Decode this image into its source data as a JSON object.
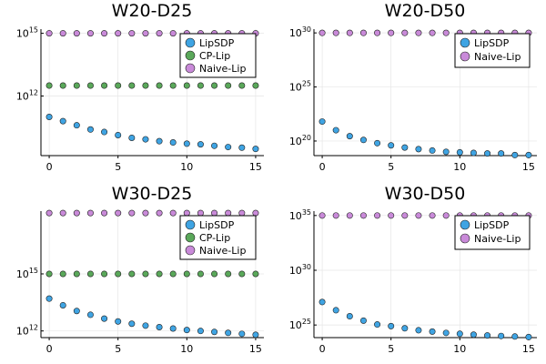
{
  "colors": {
    "LipSDP": "#3fa4e3",
    "CP-Lip": "#5aa85a",
    "Naive-Lip": "#c98ad9",
    "grid": "#e6e6e6",
    "axis": "#000000"
  },
  "chart_data": [
    {
      "type": "scatter",
      "title": "W20-D25",
      "xlabel": "",
      "ylabel": "",
      "xlim": [
        -0.6,
        15.6
      ],
      "x_ticks": [
        0,
        5,
        10,
        15
      ],
      "yscale": "log10",
      "ylim_log10": [
        9.15,
        15.2
      ],
      "y_ticks": [
        {
          "exp": 15,
          "base": "10",
          "sup": "15"
        },
        {
          "exp": 12,
          "base": "10",
          "sup": "12"
        }
      ],
      "legend": "top-right",
      "x": [
        0,
        1,
        2,
        3,
        4,
        5,
        6,
        7,
        8,
        9,
        10,
        11,
        12,
        13,
        14,
        15
      ],
      "series": [
        {
          "name": "LipSDP",
          "log10_values": [
            11.0,
            10.8,
            10.6,
            10.4,
            10.28,
            10.13,
            10.0,
            9.93,
            9.84,
            9.78,
            9.72,
            9.69,
            9.62,
            9.56,
            9.53,
            9.47
          ]
        },
        {
          "name": "CP-Lip",
          "log10_values": [
            12.5,
            12.5,
            12.5,
            12.5,
            12.5,
            12.5,
            12.5,
            12.5,
            12.5,
            12.5,
            12.5,
            12.5,
            12.5,
            12.5,
            12.5,
            12.5
          ]
        },
        {
          "name": "Naive-Lip",
          "log10_values": [
            15.0,
            15.0,
            15.0,
            15.0,
            15.0,
            15.0,
            15.0,
            15.0,
            15.0,
            15.0,
            15.0,
            15.0,
            15.0,
            15.0,
            15.0,
            15.0
          ]
        }
      ]
    },
    {
      "type": "scatter",
      "title": "W20-D50",
      "xlabel": "",
      "ylabel": "",
      "xlim": [
        -0.6,
        15.6
      ],
      "x_ticks": [
        0,
        5,
        10,
        15
      ],
      "yscale": "log10",
      "ylim_log10": [
        18.65,
        30.35
      ],
      "y_ticks": [
        {
          "exp": 30,
          "base": "10",
          "sup": "30"
        },
        {
          "exp": 25,
          "base": "10",
          "sup": "25"
        },
        {
          "exp": 20,
          "base": "10",
          "sup": "20"
        }
      ],
      "legend": "top-right",
      "x": [
        0,
        1,
        2,
        3,
        4,
        5,
        6,
        7,
        8,
        9,
        10,
        11,
        12,
        13,
        14,
        15
      ],
      "series": [
        {
          "name": "LipSDP",
          "log10_values": [
            21.8,
            21.0,
            20.45,
            20.1,
            19.8,
            19.6,
            19.4,
            19.25,
            19.12,
            19.0,
            18.95,
            18.9,
            18.85,
            18.85,
            18.7,
            18.7
          ]
        },
        {
          "name": "Naive-Lip",
          "log10_values": [
            30.0,
            30.0,
            30.0,
            30.0,
            30.0,
            30.0,
            30.0,
            30.0,
            30.0,
            30.0,
            30.0,
            30.0,
            30.0,
            30.0,
            30.0,
            30.0
          ]
        }
      ]
    },
    {
      "type": "scatter",
      "title": "W30-D25",
      "xlabel": "",
      "ylabel": "",
      "xlim": [
        -0.6,
        15.6
      ],
      "x_ticks": [
        0,
        5,
        10,
        15
      ],
      "yscale": "log10",
      "ylim_log10": [
        11.65,
        18.3
      ],
      "y_ticks": [
        {
          "exp": 15,
          "base": "10",
          "sup": "15"
        },
        {
          "exp": 12,
          "base": "10",
          "sup": "12"
        }
      ],
      "legend": "top-right",
      "x": [
        0,
        1,
        2,
        3,
        4,
        5,
        6,
        7,
        8,
        9,
        10,
        11,
        12,
        13,
        14,
        15
      ],
      "series": [
        {
          "name": "LipSDP",
          "log10_values": [
            13.7,
            13.35,
            13.05,
            12.85,
            12.65,
            12.5,
            12.38,
            12.28,
            12.2,
            12.13,
            12.05,
            12.0,
            11.95,
            11.9,
            11.85,
            11.8
          ]
        },
        {
          "name": "CP-Lip",
          "log10_values": [
            15.0,
            15.0,
            15.0,
            15.0,
            15.0,
            15.0,
            15.0,
            15.0,
            15.0,
            15.0,
            15.0,
            15.0,
            15.0,
            15.0,
            15.0,
            15.0
          ]
        },
        {
          "name": "Naive-Lip",
          "log10_values": [
            18.2,
            18.2,
            18.2,
            18.2,
            18.2,
            18.2,
            18.2,
            18.2,
            18.2,
            18.2,
            18.2,
            18.2,
            18.2,
            18.2,
            18.2,
            18.2
          ]
        }
      ]
    },
    {
      "type": "scatter",
      "title": "W30-D50",
      "xlabel": "",
      "ylabel": "",
      "xlim": [
        -0.6,
        15.6
      ],
      "x_ticks": [
        0,
        5,
        10,
        15
      ],
      "yscale": "log10",
      "ylim_log10": [
        23.85,
        35.4
      ],
      "y_ticks": [
        {
          "exp": 35,
          "base": "10",
          "sup": "35"
        },
        {
          "exp": 30,
          "base": "10",
          "sup": "30"
        },
        {
          "exp": 25,
          "base": "10",
          "sup": "25"
        }
      ],
      "legend": "top-right",
      "x": [
        0,
        1,
        2,
        3,
        4,
        5,
        6,
        7,
        8,
        9,
        10,
        11,
        12,
        13,
        14,
        15
      ],
      "series": [
        {
          "name": "LipSDP",
          "log10_values": [
            27.1,
            26.35,
            25.8,
            25.4,
            25.05,
            24.9,
            24.7,
            24.52,
            24.4,
            24.28,
            24.2,
            24.12,
            24.05,
            24.0,
            23.95,
            23.9
          ]
        },
        {
          "name": "Naive-Lip",
          "log10_values": [
            35.0,
            35.0,
            35.0,
            35.0,
            35.0,
            35.0,
            35.0,
            35.0,
            35.0,
            35.0,
            35.0,
            35.0,
            35.0,
            35.0,
            35.0,
            35.0
          ]
        }
      ]
    }
  ]
}
